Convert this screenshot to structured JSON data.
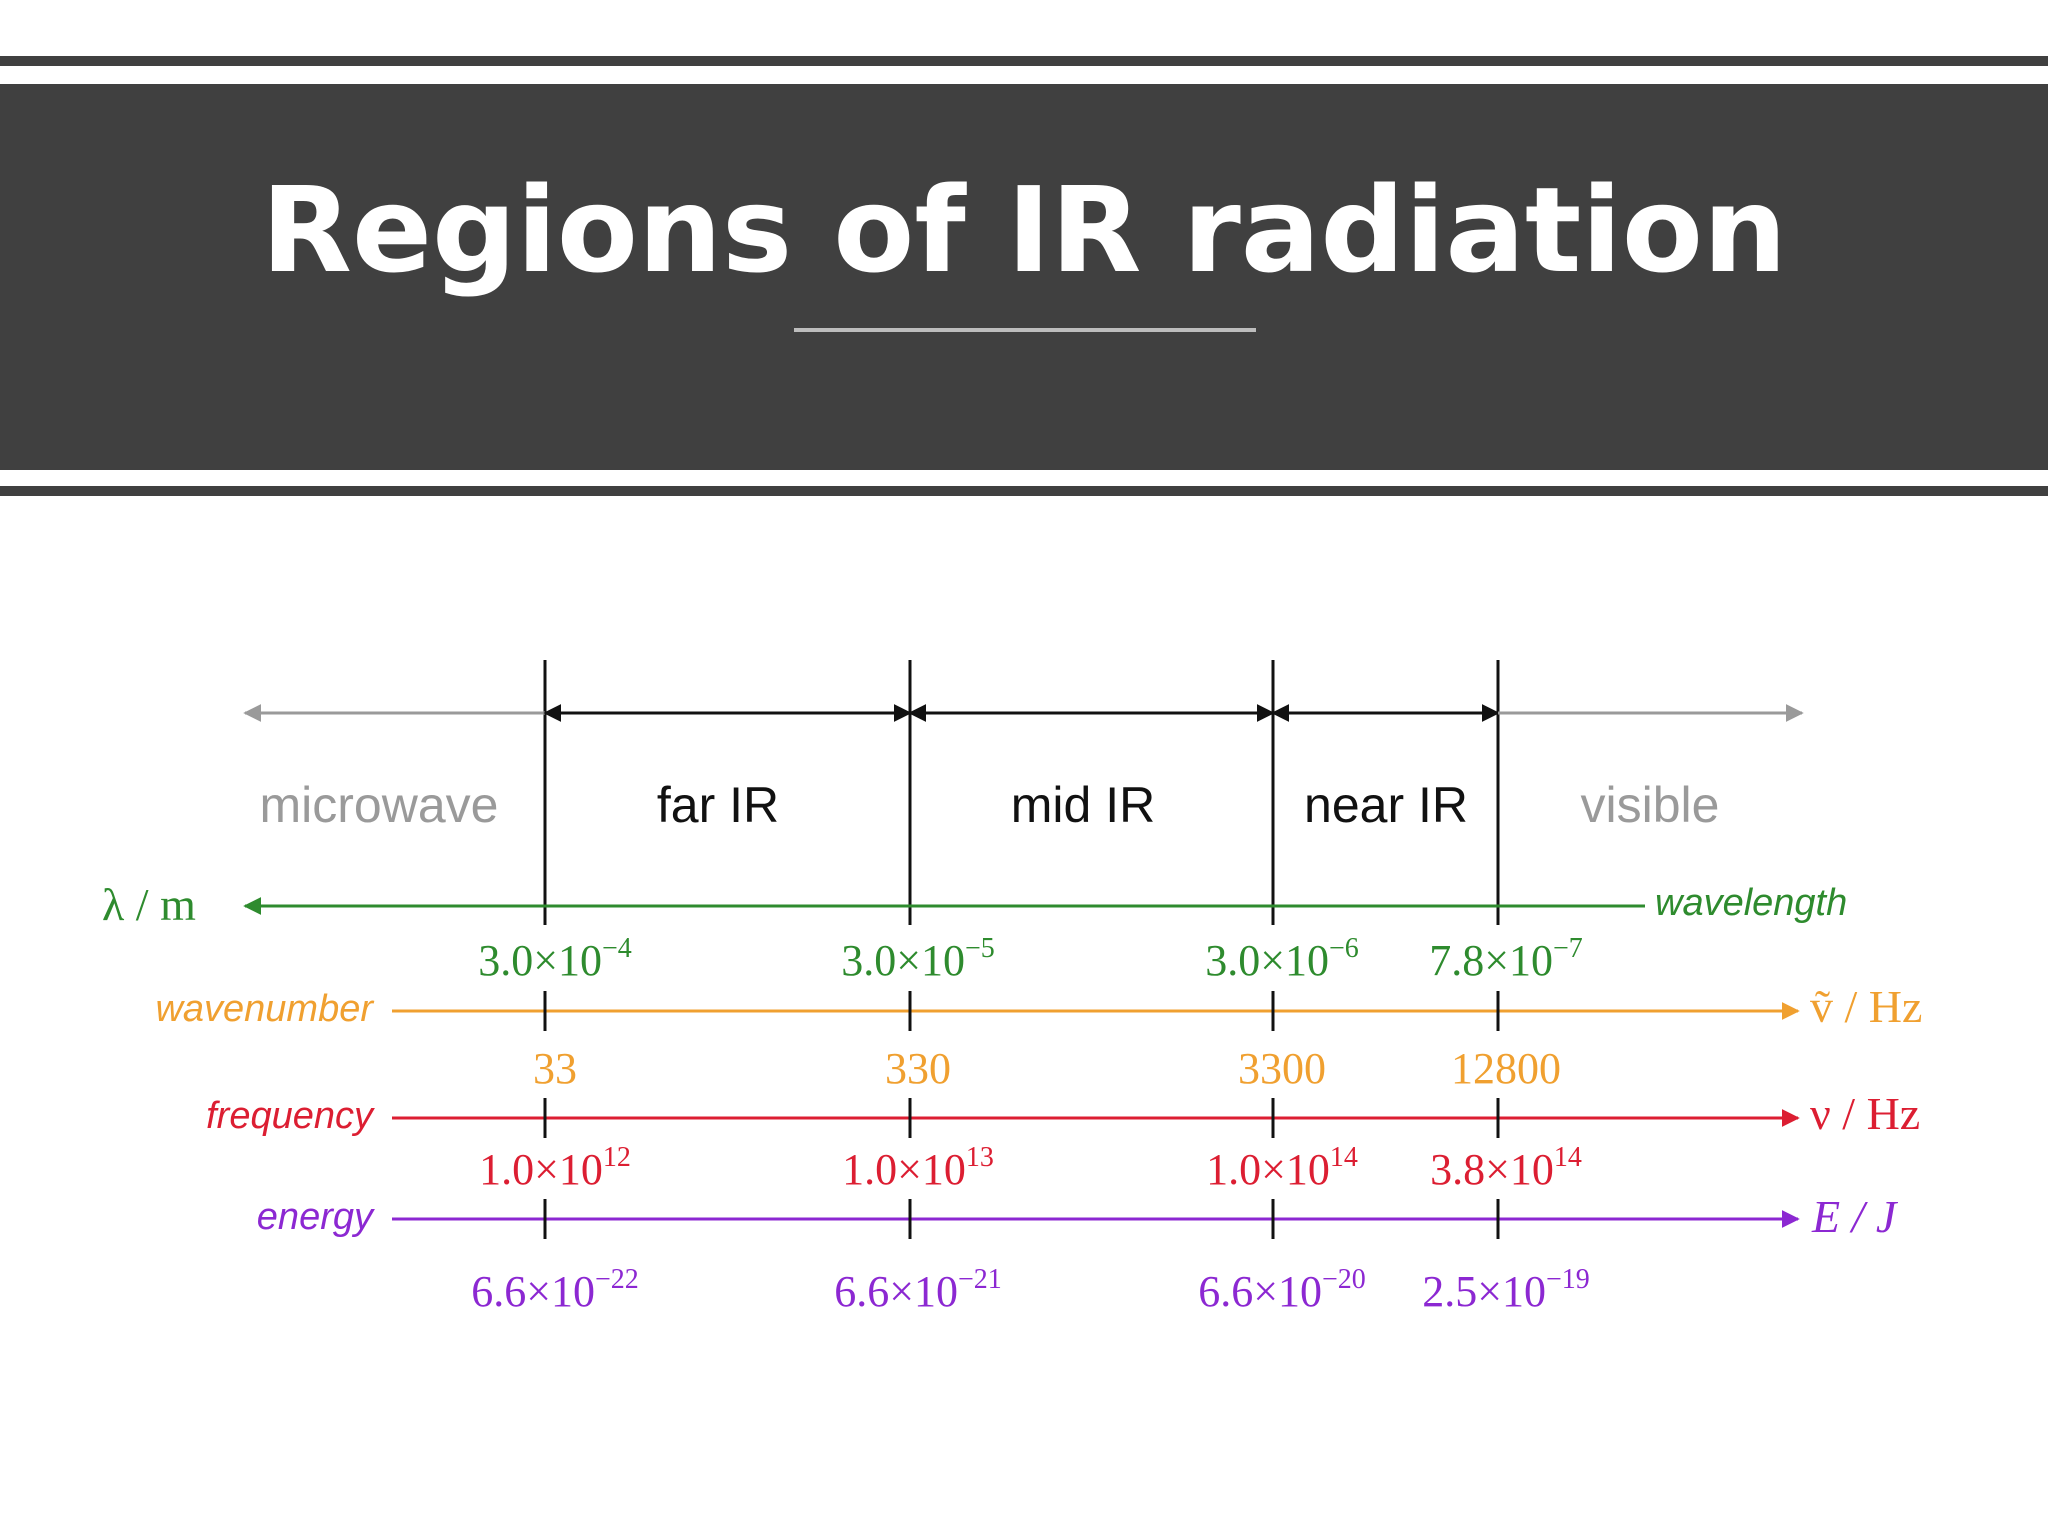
{
  "slide": {
    "title": "Regions of IR radiation"
  },
  "diagram": {
    "regions": [
      {
        "label": "microwave",
        "color": "#9a9a9a"
      },
      {
        "label": "far IR",
        "color": "#111111"
      },
      {
        "label": "mid IR",
        "color": "#111111"
      },
      {
        "label": "near IR",
        "color": "#111111"
      },
      {
        "label": "visible",
        "color": "#9a9a9a"
      }
    ],
    "scales": [
      {
        "id": "wavelength",
        "name": "wavelength",
        "symbol": "λ / m",
        "color": "#2e8b2e",
        "direction": "left",
        "values": [
          {
            "mantissa": "3.0",
            "exponent": "−4"
          },
          {
            "mantissa": "3.0",
            "exponent": "−5"
          },
          {
            "mantissa": "3.0",
            "exponent": "−6"
          },
          {
            "mantissa": "7.8",
            "exponent": "−7"
          }
        ]
      },
      {
        "id": "wavenumber",
        "name": "wavenumber",
        "symbol": "ṽ / Hz",
        "color": "#f0a030",
        "direction": "right",
        "values": [
          {
            "plain": "33"
          },
          {
            "plain": "330"
          },
          {
            "plain": "3300"
          },
          {
            "plain": "12800"
          }
        ]
      },
      {
        "id": "frequency",
        "name": "frequency",
        "symbol": "ν / Hz",
        "color": "#dc1e32",
        "direction": "right",
        "values": [
          {
            "mantissa": "1.0",
            "exponent": "12"
          },
          {
            "mantissa": "1.0",
            "exponent": "13"
          },
          {
            "mantissa": "1.0",
            "exponent": "14"
          },
          {
            "mantissa": "3.8",
            "exponent": "14"
          }
        ]
      },
      {
        "id": "energy",
        "name": "energy",
        "symbol": "E / J",
        "color": "#8c28d2",
        "direction": "right",
        "values": [
          {
            "mantissa": "6.6",
            "exponent": "−22"
          },
          {
            "mantissa": "6.6",
            "exponent": "−21"
          },
          {
            "mantissa": "6.6",
            "exponent": "−20"
          },
          {
            "mantissa": "2.5",
            "exponent": "−19"
          }
        ]
      }
    ]
  }
}
